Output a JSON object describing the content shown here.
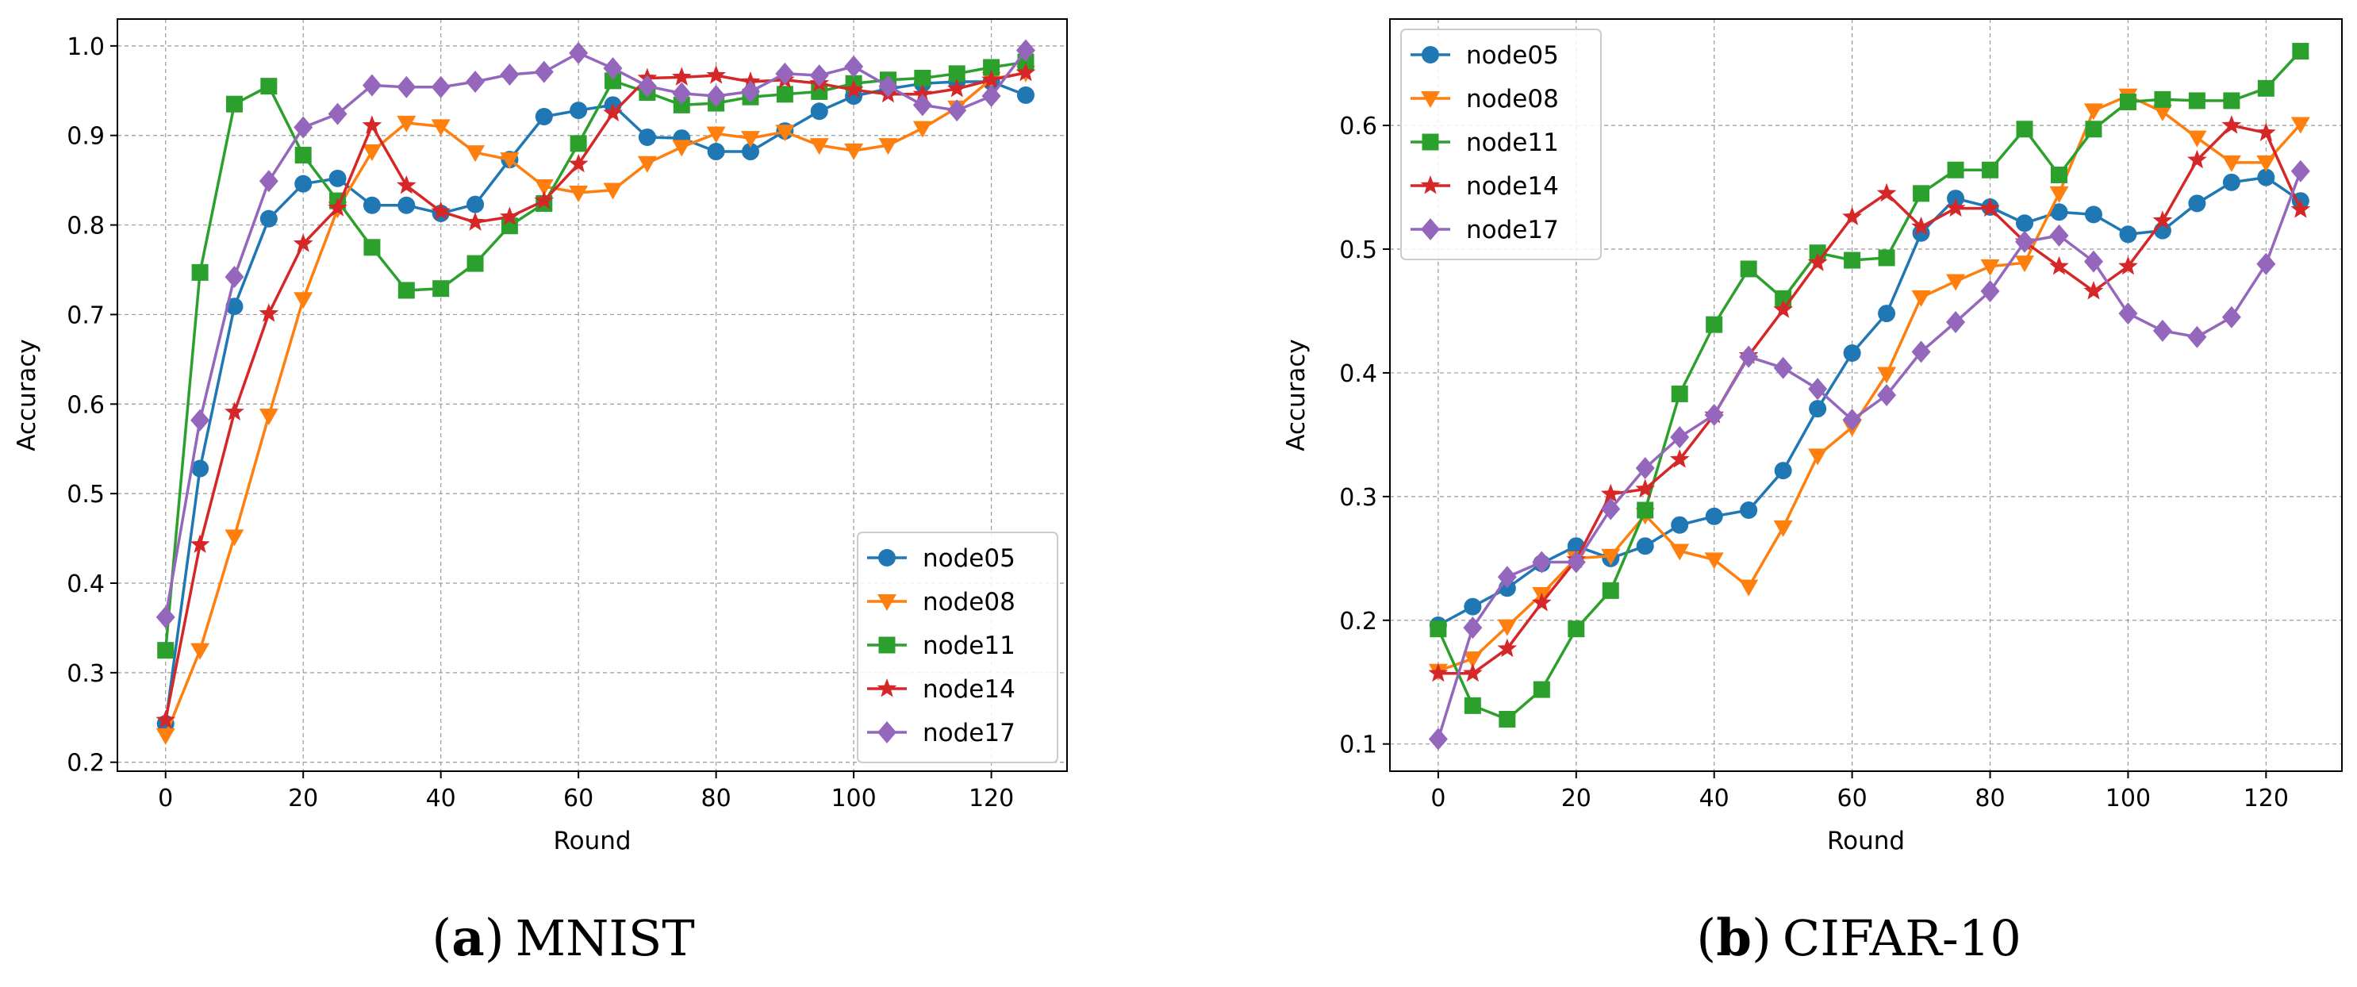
{
  "chart_data": [
    {
      "type": "line",
      "caption": {
        "letter": "a",
        "title": "MNIST"
      },
      "xlabel": "Round",
      "ylabel": "Accuracy",
      "xlim": [
        -7,
        131
      ],
      "ylim": [
        0.19,
        1.03
      ],
      "xticks": [
        0,
        20,
        40,
        60,
        80,
        100,
        120
      ],
      "xtick_labels": [
        "0",
        "20",
        "40",
        "60",
        "80",
        "100",
        "120"
      ],
      "yticks": [
        0.2,
        0.3,
        0.4,
        0.5,
        0.6,
        0.7,
        0.8,
        0.9,
        1.0
      ],
      "ytick_labels": [
        "0.2",
        "0.3",
        "0.4",
        "0.5",
        "0.6",
        "0.7",
        "0.8",
        "0.9",
        "1.0"
      ],
      "grid": true,
      "legend_position": "lower-right",
      "x": [
        0,
        5,
        10,
        15,
        20,
        25,
        30,
        35,
        40,
        45,
        50,
        55,
        60,
        65,
        70,
        75,
        80,
        85,
        90,
        95,
        100,
        105,
        110,
        115,
        120,
        125
      ],
      "series": [
        {
          "name": "node05",
          "color": "#1f77b4",
          "marker": "circle",
          "values": [
            0.243,
            0.528,
            0.709,
            0.807,
            0.846,
            0.852,
            0.822,
            0.822,
            0.813,
            0.823,
            0.873,
            0.921,
            0.928,
            0.934,
            0.898,
            0.897,
            0.882,
            0.882,
            0.905,
            0.927,
            0.944,
            0.952,
            0.958,
            0.96,
            0.96,
            0.945
          ]
        },
        {
          "name": "node08",
          "color": "#ff7f0e",
          "marker": "triangle-down",
          "values": [
            0.23,
            0.325,
            0.452,
            0.587,
            0.717,
            0.818,
            0.882,
            0.914,
            0.91,
            0.881,
            0.873,
            0.843,
            0.836,
            0.839,
            0.869,
            0.887,
            0.902,
            0.897,
            0.904,
            0.889,
            0.883,
            0.889,
            0.908,
            0.931,
            0.963,
            0.97
          ]
        },
        {
          "name": "node11",
          "color": "#2ca02c",
          "marker": "square",
          "values": [
            0.325,
            0.747,
            0.935,
            0.955,
            0.878,
            0.827,
            0.775,
            0.727,
            0.729,
            0.757,
            0.799,
            0.824,
            0.891,
            0.961,
            0.948,
            0.934,
            0.936,
            0.943,
            0.946,
            0.949,
            0.958,
            0.962,
            0.964,
            0.969,
            0.976,
            0.982
          ]
        },
        {
          "name": "node14",
          "color": "#d62728",
          "marker": "star",
          "values": [
            0.247,
            0.443,
            0.591,
            0.701,
            0.779,
            0.819,
            0.911,
            0.844,
            0.815,
            0.803,
            0.809,
            0.827,
            0.868,
            0.925,
            0.964,
            0.965,
            0.967,
            0.96,
            0.962,
            0.958,
            0.951,
            0.946,
            0.946,
            0.952,
            0.962,
            0.97
          ]
        },
        {
          "name": "node17",
          "color": "#9467bd",
          "marker": "diamond",
          "values": [
            0.362,
            0.582,
            0.742,
            0.849,
            0.909,
            0.924,
            0.956,
            0.954,
            0.954,
            0.96,
            0.968,
            0.971,
            0.992,
            0.975,
            0.955,
            0.947,
            0.944,
            0.949,
            0.969,
            0.967,
            0.977,
            0.955,
            0.934,
            0.928,
            0.944,
            0.995
          ]
        }
      ]
    },
    {
      "type": "line",
      "caption": {
        "letter": "b",
        "title": "CIFAR-10"
      },
      "xlabel": "Round",
      "ylabel": "Accuracy",
      "xlim": [
        -7,
        131
      ],
      "ylim": [
        0.078,
        0.686
      ],
      "xticks": [
        0,
        20,
        40,
        60,
        80,
        100,
        120
      ],
      "xtick_labels": [
        "0",
        "20",
        "40",
        "60",
        "80",
        "100",
        "120"
      ],
      "yticks": [
        0.1,
        0.2,
        0.3,
        0.4,
        0.5,
        0.6
      ],
      "ytick_labels": [
        "0.1",
        "0.2",
        "0.3",
        "0.4",
        "0.5",
        "0.6"
      ],
      "grid": true,
      "legend_position": "upper-left",
      "x": [
        0,
        5,
        10,
        15,
        20,
        25,
        30,
        35,
        40,
        45,
        50,
        55,
        60,
        65,
        70,
        75,
        80,
        85,
        90,
        95,
        100,
        105,
        110,
        115,
        120,
        125
      ],
      "series": [
        {
          "name": "node05",
          "color": "#1f77b4",
          "marker": "circle",
          "values": [
            0.196,
            0.211,
            0.226,
            0.246,
            0.26,
            0.25,
            0.26,
            0.277,
            0.284,
            0.289,
            0.321,
            0.371,
            0.416,
            0.448,
            0.513,
            0.541,
            0.534,
            0.521,
            0.53,
            0.528,
            0.512,
            0.515,
            0.537,
            0.554,
            0.558,
            0.539
          ]
        },
        {
          "name": "node08",
          "color": "#ff7f0e",
          "marker": "triangle-down",
          "values": [
            0.159,
            0.169,
            0.195,
            0.221,
            0.25,
            0.252,
            0.285,
            0.256,
            0.249,
            0.227,
            0.275,
            0.333,
            0.356,
            0.399,
            0.461,
            0.474,
            0.486,
            0.489,
            0.545,
            0.612,
            0.624,
            0.611,
            0.59,
            0.57,
            0.57,
            0.601
          ]
        },
        {
          "name": "node11",
          "color": "#2ca02c",
          "marker": "square",
          "values": [
            0.193,
            0.131,
            0.12,
            0.144,
            0.193,
            0.224,
            0.289,
            0.383,
            0.439,
            0.484,
            0.46,
            0.497,
            0.491,
            0.493,
            0.545,
            0.564,
            0.564,
            0.597,
            0.56,
            0.597,
            0.619,
            0.621,
            0.62,
            0.62,
            0.63,
            0.66
          ]
        },
        {
          "name": "node14",
          "color": "#d62728",
          "marker": "star",
          "values": [
            0.157,
            0.157,
            0.177,
            0.214,
            0.249,
            0.302,
            0.306,
            0.33,
            0.366,
            0.414,
            0.451,
            0.489,
            0.526,
            0.545,
            0.518,
            0.533,
            0.533,
            0.506,
            0.486,
            0.466,
            0.486,
            0.523,
            0.572,
            0.6,
            0.594,
            0.532
          ]
        },
        {
          "name": "node17",
          "color": "#9467bd",
          "marker": "diamond",
          "values": [
            0.104,
            0.194,
            0.235,
            0.247,
            0.247,
            0.29,
            0.323,
            0.348,
            0.366,
            0.413,
            0.404,
            0.387,
            0.362,
            0.382,
            0.417,
            0.441,
            0.466,
            0.506,
            0.511,
            0.49,
            0.448,
            0.434,
            0.429,
            0.445,
            0.488,
            0.563
          ]
        }
      ]
    }
  ]
}
